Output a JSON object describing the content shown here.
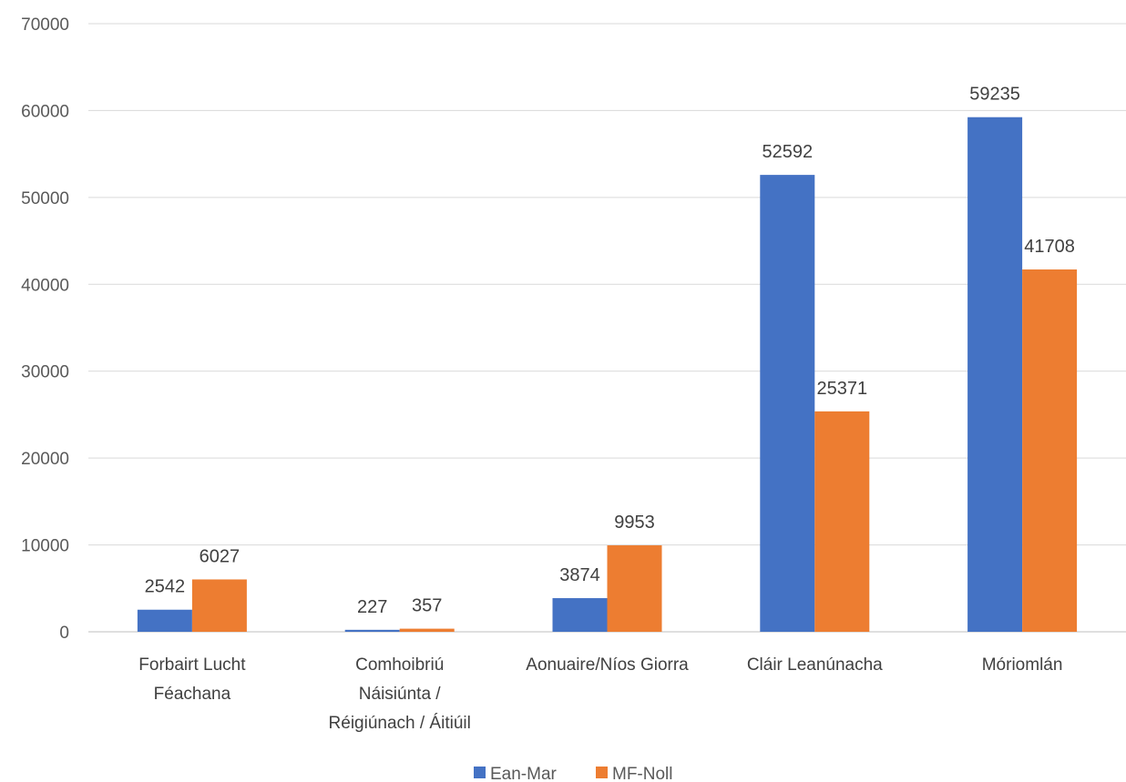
{
  "chart_data": {
    "type": "bar",
    "categories": [
      [
        "Forbairt Lucht",
        "Féachana"
      ],
      [
        "Comhoibriú",
        "Náisiúnta /",
        "Réigiúnach / Áitiúil"
      ],
      [
        "Aonuaire/Níos Giorra"
      ],
      [
        "Cláir Leanúnacha"
      ],
      [
        "Móriomlán"
      ]
    ],
    "series": [
      {
        "name": "Ean-Mar",
        "color": "#4472C4",
        "values": [
          2542,
          227,
          3874,
          52592,
          59235
        ]
      },
      {
        "name": "MF-Noll",
        "color": "#ED7D31",
        "values": [
          6027,
          357,
          9953,
          25371,
          41708
        ]
      }
    ],
    "ylim": [
      0,
      70000
    ],
    "yticks": [
      0,
      10000,
      20000,
      30000,
      40000,
      50000,
      60000,
      70000
    ],
    "grid": true,
    "legend": "bottom",
    "title": "",
    "xlabel": "",
    "ylabel": ""
  }
}
